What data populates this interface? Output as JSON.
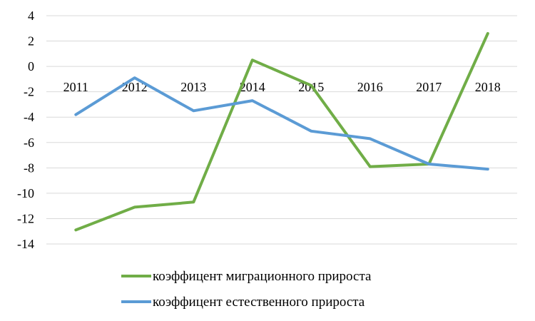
{
  "chart_data": {
    "type": "line",
    "categories": [
      "2011",
      "2012",
      "2013",
      "2014",
      "2015",
      "2016",
      "2017",
      "2018"
    ],
    "series": [
      {
        "name": "коэффицент миграционного прироста",
        "color": "#70ad47",
        "values": [
          -12.9,
          -11.1,
          -10.7,
          0.5,
          -1.5,
          -7.9,
          -7.7,
          2.6
        ]
      },
      {
        "name": "коэффицент естественного прироста",
        "color": "#5b9bd5",
        "values": [
          -3.8,
          -0.9,
          -3.5,
          -2.7,
          -5.1,
          -5.7,
          -7.7,
          -8.1
        ]
      }
    ],
    "y_ticks": [
      "4",
      "2",
      "0",
      "-2",
      "-4",
      "-6",
      "-8",
      "-10",
      "-12",
      "-14"
    ],
    "ylim": [
      -14,
      4
    ],
    "grid": true,
    "legend_position": "bottom"
  }
}
